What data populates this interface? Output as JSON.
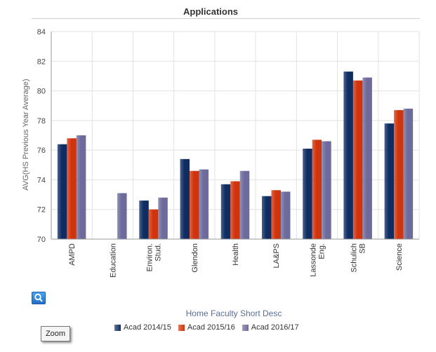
{
  "chart_data": {
    "type": "bar",
    "title": "Applications",
    "xlabel": "Home Faculty Short Desc",
    "ylabel": "AVG(HS Previous Year Average)",
    "ylim": [
      70,
      84
    ],
    "yticks": [
      70,
      72,
      74,
      76,
      78,
      80,
      82,
      84
    ],
    "grid": true,
    "legend_position": "bottom",
    "categories": [
      "AMPD",
      "Education",
      "Environ. Stud.",
      "Glendon",
      "Health",
      "LA&PS",
      "Lassonde Eng.",
      "Schulich SB",
      "Science"
    ],
    "category_lines": [
      [
        "AMPD"
      ],
      [
        "Education"
      ],
      [
        "Environ.",
        "Stud."
      ],
      [
        "Glendon"
      ],
      [
        "Health"
      ],
      [
        "LA&PS"
      ],
      [
        "Lassonde",
        "Eng."
      ],
      [
        "Schulich",
        "SB"
      ],
      [
        "Science"
      ]
    ],
    "series": [
      {
        "name": "Acad 2014/15",
        "color": "#0f2d62",
        "values": [
          76.4,
          null,
          72.6,
          75.4,
          73.7,
          72.9,
          76.1,
          81.3,
          77.8
        ]
      },
      {
        "name": "Acad 2015/16",
        "color": "#d0340c",
        "values": [
          76.8,
          null,
          72.0,
          74.6,
          73.9,
          73.3,
          76.7,
          80.7,
          78.7
        ]
      },
      {
        "name": "Acad 2016/17",
        "color": "#6c6b9c",
        "values": [
          77.0,
          73.1,
          72.8,
          74.7,
          74.6,
          73.2,
          76.6,
          80.9,
          78.8
        ]
      }
    ]
  },
  "controls": {
    "zoom_label": "Zoom",
    "zoom_icon": "magnifier-icon"
  }
}
